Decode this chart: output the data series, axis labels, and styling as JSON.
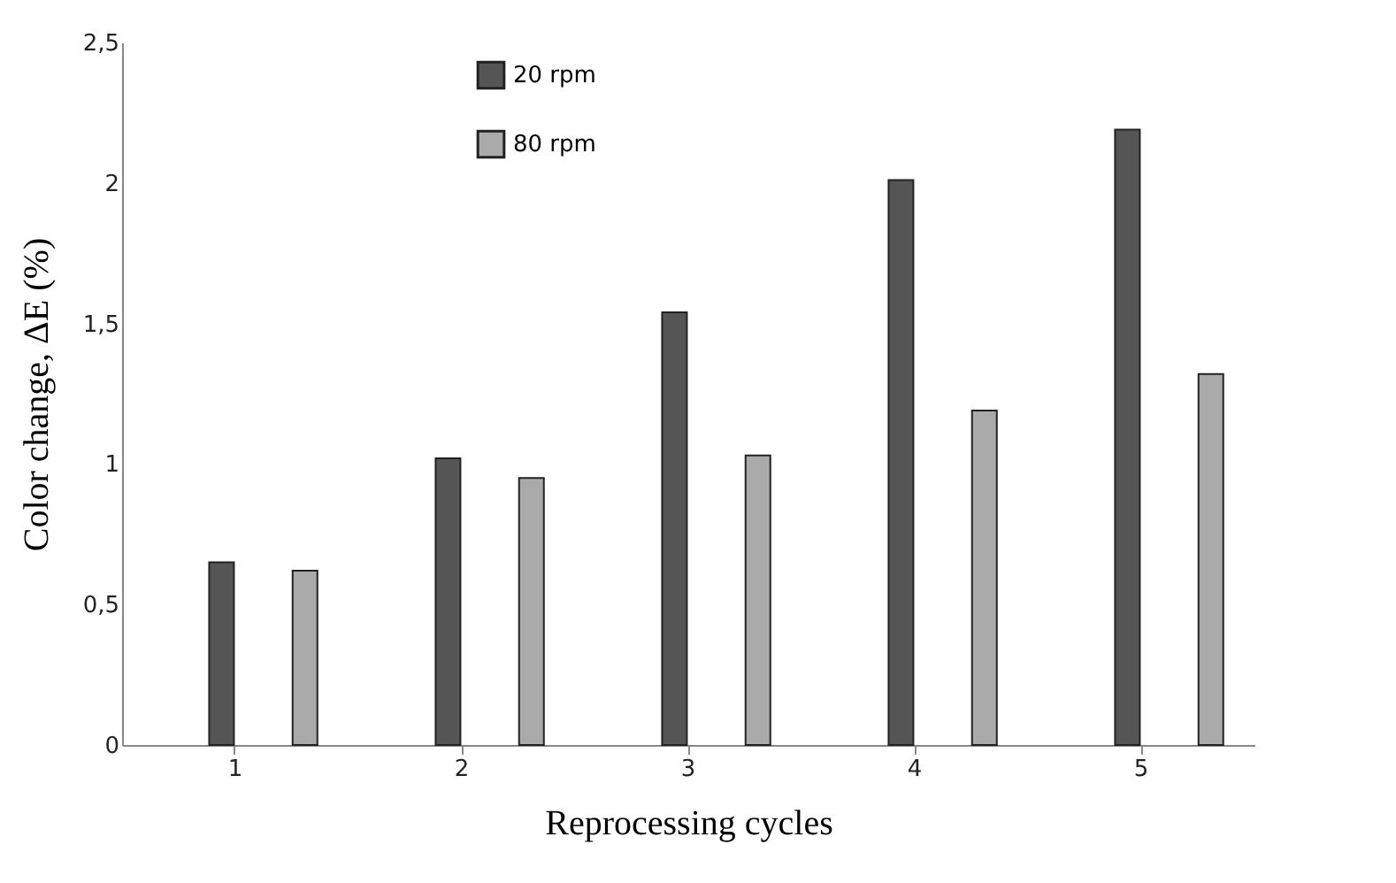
{
  "chart_data": {
    "type": "bar",
    "xlabel": "Reprocessing cycles",
    "ylabel": "Color change, ΔE (%)",
    "categories": [
      "1",
      "2",
      "3",
      "4",
      "5"
    ],
    "series": [
      {
        "name": "20 rpm",
        "color": "#555555",
        "values": [
          0.65,
          1.02,
          1.54,
          2.01,
          2.19
        ]
      },
      {
        "name": "80 rpm",
        "color": "#aaaaaa",
        "values": [
          0.62,
          0.95,
          1.03,
          1.19,
          1.32
        ]
      }
    ],
    "ylim": [
      0,
      2.5
    ],
    "yticks": [
      0,
      {
        "value": 0.5,
        "label": "0,5"
      },
      1,
      {
        "value": 1.5,
        "label": "1,5"
      },
      2,
      {
        "value": 2.5,
        "label": "2,5"
      }
    ],
    "grid": false,
    "legend": "top left"
  }
}
